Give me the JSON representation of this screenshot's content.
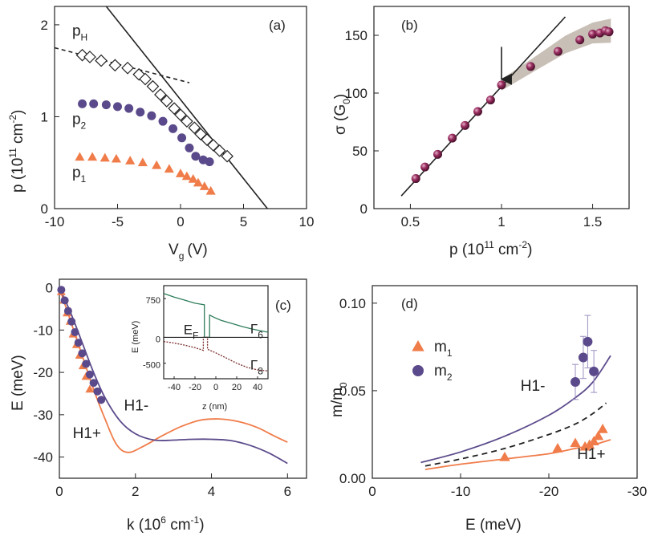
{
  "chart_data": [
    {
      "id": "a",
      "type": "scatter",
      "panel_label": "(a)",
      "xlabel": "V",
      "xlabel_sub": "g",
      "xlabel_unit": "(V)",
      "ylabel": "p (10",
      "ylabel_sup1": "11",
      "ylabel_mid": " cm",
      "ylabel_sup2": "-2",
      "ylabel_end": ")",
      "xlim": [
        -10,
        10
      ],
      "ylim": [
        0,
        2.2
      ],
      "xticks": [
        -10,
        -5,
        0,
        5,
        10
      ],
      "yticks": [
        0,
        1,
        2
      ],
      "series": [
        {
          "name": "pH",
          "marker": "diamond",
          "color": "#222222",
          "x": [
            -7.8,
            -7.2,
            -6.3,
            -5.2,
            -4.2,
            -3.3,
            -2.8,
            -2.2,
            -1.6,
            -1.1,
            -0.5,
            0.0,
            0.5,
            1.1,
            1.6,
            2.1,
            2.6,
            3.1,
            3.7
          ],
          "y": [
            1.67,
            1.65,
            1.61,
            1.56,
            1.53,
            1.46,
            1.41,
            1.33,
            1.24,
            1.17,
            1.09,
            1.02,
            0.95,
            0.88,
            0.81,
            0.75,
            0.69,
            0.63,
            0.57
          ]
        },
        {
          "name": "p2",
          "marker": "circle",
          "color": "#5b4a8b",
          "x": [
            -7.8,
            -6.9,
            -5.9,
            -5.0,
            -4.1,
            -3.2,
            -2.3,
            -1.4,
            -0.6,
            0.1,
            0.7,
            1.2,
            1.8,
            2.3
          ],
          "y": [
            1.14,
            1.14,
            1.13,
            1.11,
            1.09,
            1.05,
            1.01,
            0.95,
            0.87,
            0.77,
            0.66,
            0.57,
            0.53,
            0.51
          ]
        },
        {
          "name": "p1",
          "marker": "triangle",
          "color": "#f07c4a",
          "x": [
            -8.0,
            -7.0,
            -6.0,
            -5.1,
            -4.0,
            -3.0,
            -1.9,
            -0.9,
            0.0,
            0.5,
            1.0,
            1.4,
            1.9,
            2.4
          ],
          "y": [
            0.56,
            0.56,
            0.55,
            0.54,
            0.52,
            0.5,
            0.47,
            0.43,
            0.38,
            0.35,
            0.32,
            0.28,
            0.24,
            0.19
          ]
        }
      ],
      "lines": [
        {
          "name": "solid-fit",
          "style": "solid",
          "x": [
            -5.9,
            6.9
          ],
          "y": [
            2.2,
            0.0
          ]
        },
        {
          "name": "dashed-fit",
          "style": "dashed",
          "x": [
            -10,
            0.7
          ],
          "y": [
            1.75,
            1.37
          ]
        }
      ],
      "annotations": [
        {
          "text": "p",
          "sub": "H",
          "x": -8.6,
          "y": 1.88
        },
        {
          "text": "p",
          "sub": "2",
          "x": -8.6,
          "y": 0.92
        },
        {
          "text": "p",
          "sub": "1",
          "x": -8.6,
          "y": 0.34
        }
      ]
    },
    {
      "id": "b",
      "type": "scatter",
      "panel_label": "(b)",
      "xlabel": "p (10",
      "xlabel_sup1": "11",
      "xlabel_mid": " cm",
      "xlabel_sup2": "-2",
      "xlabel_end": ")",
      "ylabel": "σ (G",
      "ylabel_sub": "0",
      "ylabel_end": ")",
      "xlim": [
        0.3,
        1.7
      ],
      "ylim": [
        0,
        175
      ],
      "xticks": [
        0.5,
        1.0,
        1.5
      ],
      "yticks": [
        0,
        50,
        100,
        150
      ],
      "series": [
        {
          "name": "sigma",
          "marker": "sphere",
          "color": "#7a1f4b",
          "x": [
            0.53,
            0.58,
            0.65,
            0.73,
            0.8,
            0.87,
            0.94,
            1.0,
            1.16,
            1.31,
            1.43,
            1.5,
            1.54,
            1.57,
            1.59
          ],
          "y": [
            26,
            36,
            47,
            61,
            72,
            84,
            94,
            107,
            123,
            136,
            146,
            151,
            152,
            154,
            153
          ]
        }
      ],
      "lines": [
        {
          "name": "linear-fit",
          "style": "solid",
          "x": [
            0.45,
            1.35
          ],
          "y": [
            11,
            166
          ]
        }
      ],
      "band": {
        "x": [
          1.0,
          1.2,
          1.35,
          1.5,
          1.6
        ],
        "y_center": [
          107,
          127,
          142,
          152,
          154
        ]
      },
      "arrow": {
        "x": 1.0,
        "y_from": 140,
        "y_to": 112
      }
    },
    {
      "id": "c",
      "type": "line",
      "panel_label": "(c)",
      "xlabel": "k (10",
      "xlabel_sup1": "6",
      "xlabel_mid": " cm",
      "xlabel_sup2": "-1",
      "xlabel_end": ")",
      "ylabel": "E (meV)",
      "xlim": [
        0,
        6.5
      ],
      "ylim": [
        -45,
        2
      ],
      "xticks": [
        0,
        2,
        4,
        6
      ],
      "yticks": [
        0,
        -10,
        -20,
        -30,
        -40
      ],
      "series": [
        {
          "name": "H1+",
          "style": "line",
          "color": "#f07c4a",
          "x": [
            0,
            0.3,
            0.6,
            0.9,
            1.2,
            1.5,
            1.8,
            2.2,
            2.7,
            3.2,
            3.7,
            4.2,
            4.7,
            5.2,
            5.6,
            6.0
          ],
          "y": [
            0,
            -8,
            -16,
            -24,
            -31,
            -37,
            -38.9,
            -37.5,
            -35,
            -32.8,
            -31.3,
            -31,
            -31.6,
            -33,
            -34.8,
            -36.5
          ]
        },
        {
          "name": "H1-",
          "style": "line",
          "color": "#5b4a8b",
          "x": [
            0,
            0.3,
            0.6,
            0.9,
            1.2,
            1.6,
            2.0,
            2.5,
            3.0,
            3.5,
            4.0,
            4.5,
            5.0,
            5.5,
            6.0
          ],
          "y": [
            0,
            -6,
            -13,
            -20,
            -26,
            -31.5,
            -34.5,
            -36,
            -36,
            -35.8,
            -35.8,
            -36.1,
            -37.2,
            -39,
            -41.5
          ]
        },
        {
          "name": "m1-points",
          "style": "triangle",
          "color": "#f07c4a",
          "x": [
            0.05,
            0.12,
            0.2,
            0.28,
            0.36,
            0.45,
            0.53,
            0.62,
            0.7,
            0.8
          ],
          "y": [
            -1,
            -3,
            -6,
            -8,
            -11,
            -13.5,
            -16,
            -18.5,
            -21,
            -24
          ]
        },
        {
          "name": "m2-points",
          "style": "circle",
          "color": "#5b4a8b",
          "x": [
            0.05,
            0.14,
            0.23,
            0.32,
            0.41,
            0.5,
            0.6,
            0.7,
            0.8,
            0.9,
            1.0,
            1.1
          ],
          "y": [
            -0.5,
            -3,
            -5.5,
            -8,
            -10.5,
            -13,
            -15.5,
            -18,
            -20.5,
            -22.5,
            -24.5,
            -26.5
          ]
        }
      ],
      "annotations": [
        {
          "text": "H1-",
          "x": 1.7,
          "y": -29
        },
        {
          "text": "H1+",
          "x": 0.35,
          "y": -35.5
        }
      ],
      "inset": {
        "xlabel": "z (nm)",
        "ylabel": "E (meV)",
        "xlim": [
          -50,
          50
        ],
        "ylim": [
          -800,
          1000
        ],
        "xticks": [
          -40,
          -20,
          0,
          20,
          40
        ],
        "yticks": [
          750,
          0,
          -500
        ],
        "ytick_labels": [
          "750",
          "0",
          "-500"
        ],
        "labels": [
          {
            "text": "E",
            "sub": "F",
            "x": -31,
            "y": 60
          },
          {
            "text": "Γ",
            "sub": "6",
            "x": 33,
            "y": 80
          },
          {
            "text": "Γ",
            "sub": "8",
            "x": 33,
            "y": -620
          }
        ]
      }
    },
    {
      "id": "d",
      "type": "scatter",
      "panel_label": "(d)",
      "xlabel": "E (meV)",
      "ylabel": "m/m",
      "ylabel_sub": "0",
      "xlim": [
        0,
        -30
      ],
      "ylim": [
        0,
        0.11
      ],
      "xticks": [
        0,
        -10,
        -20,
        -30
      ],
      "yticks": [
        0.0,
        0.05,
        0.1
      ],
      "ytick_labels": [
        "0.00",
        "0.05",
        "0.10"
      ],
      "series": [
        {
          "name": "m1",
          "marker": "triangle",
          "color": "#f07c4a",
          "x": [
            -15,
            -21,
            -23,
            -24.1,
            -24.6,
            -25.1,
            -25.6,
            -26.1
          ],
          "y": [
            0.012,
            0.017,
            0.02,
            0.018,
            0.019,
            0.021,
            0.024,
            0.028
          ]
        },
        {
          "name": "m2",
          "marker": "circle",
          "color": "#5b4a8b",
          "x": [
            -23,
            -23.9,
            -24.4,
            -25.1
          ],
          "y": [
            0.055,
            0.069,
            0.078,
            0.061
          ],
          "err": [
            0.01,
            0.012,
            0.015,
            0.012
          ]
        }
      ],
      "curves": [
        {
          "name": "H1-",
          "style": "solid",
          "color": "#5b4a8b",
          "x": [
            -5.5,
            -10,
            -15,
            -20,
            -23,
            -25,
            -27
          ],
          "y": [
            0.009,
            0.015,
            0.024,
            0.036,
            0.046,
            0.055,
            0.07
          ]
        },
        {
          "name": "dashed",
          "style": "dashed",
          "color": "#222222",
          "x": [
            -6,
            -10,
            -15,
            -20,
            -23,
            -25,
            -26.5
          ],
          "y": [
            0.007,
            0.011,
            0.017,
            0.025,
            0.031,
            0.037,
            0.043
          ]
        },
        {
          "name": "H1+",
          "style": "solid",
          "color": "#f07c4a",
          "x": [
            -6,
            -10,
            -15,
            -20,
            -23,
            -25,
            -27
          ],
          "y": [
            0.005,
            0.008,
            0.011,
            0.014,
            0.017,
            0.019,
            0.022
          ]
        }
      ],
      "legend": [
        {
          "label": "m",
          "sub": "1",
          "marker": "triangle"
        },
        {
          "label": "m",
          "sub": "2",
          "marker": "circle"
        }
      ],
      "annotations": [
        {
          "text": "H1-",
          "x": -16.8,
          "y": 0.05
        },
        {
          "text": "H1+",
          "x": -23.2,
          "y": 0.011
        }
      ]
    }
  ]
}
